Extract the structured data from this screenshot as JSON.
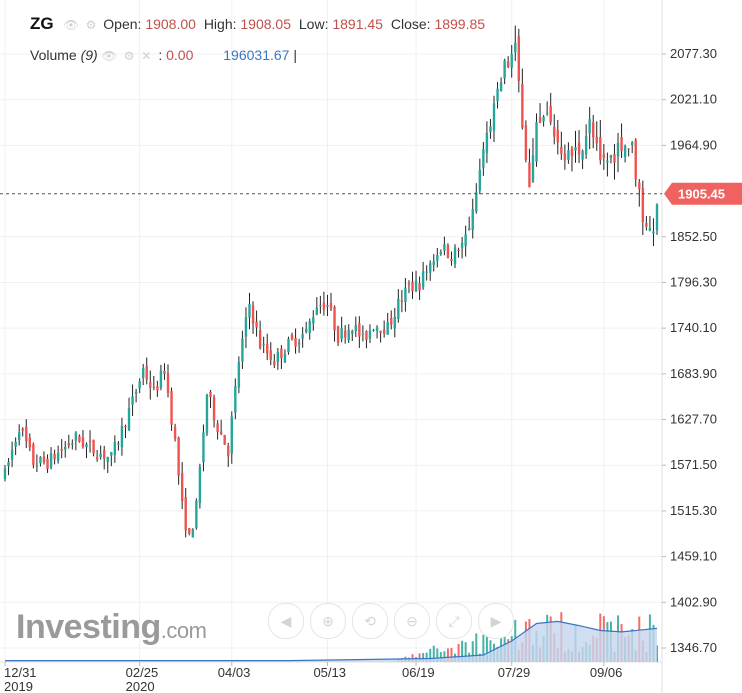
{
  "header": {
    "symbol": "ZG",
    "open_label": "Open:",
    "open": "1908.00",
    "high_label": "High:",
    "high": "1908.05",
    "low_label": "Low:",
    "low": "1891.45",
    "close_label": "Close:",
    "close": "1899.85",
    "volume_label": "Volume",
    "volume_period": "(9)",
    "volume_value": "0.00",
    "volume_ma": "196031.67",
    "cursor": "|"
  },
  "logo": {
    "brand": "Investing",
    "suffix": ".com"
  },
  "toolbar": {
    "icons": [
      "scroll-left-icon",
      "zoom-in-icon",
      "zoom-reset-icon",
      "zoom-out-icon",
      "zoom-fit-icon",
      "scroll-right-icon"
    ]
  },
  "colors": {
    "up": "#26a69a",
    "down": "#ef5350",
    "price_label": "#f0625f",
    "volume_ma": "#3a76c4",
    "volume_area": "#c6d6ef"
  },
  "chart_data": {
    "type": "candlestick",
    "y_ticks": [
      "2077.30",
      "2021.10",
      "1964.90",
      "1852.50",
      "1796.30",
      "1740.10",
      "1683.90",
      "1627.70",
      "1571.50",
      "1515.30",
      "1459.10",
      "1402.90",
      "1346.70"
    ],
    "y_tick_values": [
      2077.3,
      2021.1,
      1964.9,
      1852.5,
      1796.3,
      1740.1,
      1683.9,
      1627.7,
      1571.5,
      1515.3,
      1459.1,
      1402.9,
      1346.7
    ],
    "x_labels": [
      {
        "label": "12/31",
        "sub": "2019",
        "index": 0
      },
      {
        "label": "02/25",
        "sub": "2020",
        "index": 38
      },
      {
        "label": "04/03",
        "sub": "",
        "index": 64
      },
      {
        "label": "05/13",
        "sub": "",
        "index": 91
      },
      {
        "label": "06/19",
        "sub": "",
        "index": 116
      },
      {
        "label": "07/29",
        "sub": "",
        "index": 143
      },
      {
        "label": "09/06",
        "sub": "",
        "index": 169
      }
    ],
    "last_price": "1905.45",
    "ylim": [
      1330,
      2110
    ],
    "anchors": [
      [
        0,
        1560
      ],
      [
        4,
        1620
      ],
      [
        8,
        1575
      ],
      [
        12,
        1575
      ],
      [
        16,
        1590
      ],
      [
        20,
        1605
      ],
      [
        25,
        1590
      ],
      [
        30,
        1580
      ],
      [
        36,
        1650
      ],
      [
        39,
        1690
      ],
      [
        42,
        1660
      ],
      [
        45,
        1690
      ],
      [
        48,
        1600
      ],
      [
        50,
        1520
      ],
      [
        52,
        1480
      ],
      [
        54,
        1520
      ],
      [
        57,
        1660
      ],
      [
        60,
        1620
      ],
      [
        63,
        1590
      ],
      [
        66,
        1700
      ],
      [
        69,
        1770
      ],
      [
        72,
        1720
      ],
      [
        76,
        1700
      ],
      [
        80,
        1720
      ],
      [
        85,
        1735
      ],
      [
        88,
        1770
      ],
      [
        91,
        1770
      ],
      [
        94,
        1730
      ],
      [
        98,
        1745
      ],
      [
        101,
        1725
      ],
      [
        104,
        1745
      ],
      [
        108,
        1740
      ],
      [
        111,
        1770
      ],
      [
        114,
        1790
      ],
      [
        117,
        1795
      ],
      [
        120,
        1820
      ],
      [
        123,
        1840
      ],
      [
        126,
        1830
      ],
      [
        129,
        1840
      ],
      [
        132,
        1880
      ],
      [
        135,
        1960
      ],
      [
        138,
        2010
      ],
      [
        141,
        2060
      ],
      [
        144,
        2080
      ],
      [
        146,
        2000
      ],
      [
        148,
        1910
      ],
      [
        150,
        1980
      ],
      [
        153,
        2000
      ],
      [
        156,
        1970
      ],
      [
        159,
        1950
      ],
      [
        162,
        1960
      ],
      [
        165,
        1990
      ],
      [
        168,
        1940
      ],
      [
        171,
        1950
      ],
      [
        174,
        1970
      ],
      [
        177,
        1960
      ],
      [
        180,
        1880
      ],
      [
        182,
        1860
      ],
      [
        184,
        1880
      ]
    ],
    "volume_ma": [
      [
        0,
        0.02
      ],
      [
        80,
        0.02
      ],
      [
        120,
        0.05
      ],
      [
        135,
        0.1
      ],
      [
        143,
        0.3
      ],
      [
        150,
        0.55
      ],
      [
        156,
        0.58
      ],
      [
        162,
        0.52
      ],
      [
        168,
        0.45
      ],
      [
        174,
        0.43
      ],
      [
        184,
        0.48
      ]
    ]
  }
}
